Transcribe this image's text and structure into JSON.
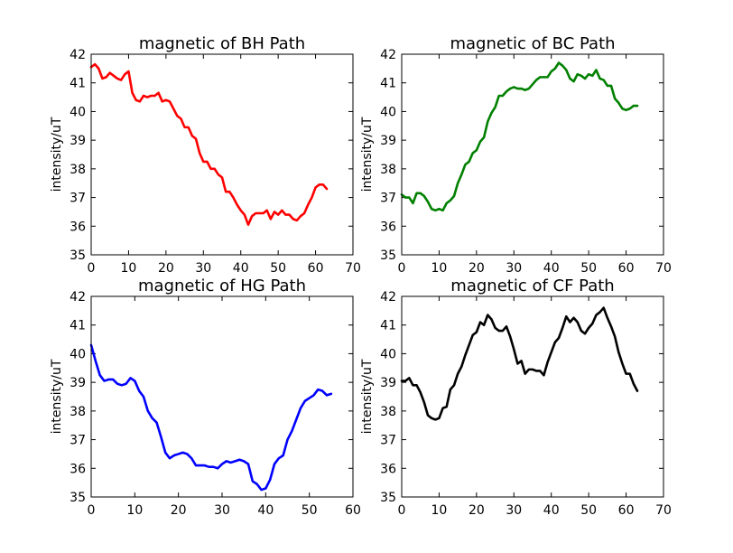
{
  "chart_data": [
    {
      "type": "line",
      "title": "magnetic of BH Path",
      "xlabel": "",
      "ylabel": "intensity/uT",
      "xlim": [
        0,
        70
      ],
      "ylim": [
        35,
        42
      ],
      "xticks": [
        "0",
        "10",
        "20",
        "30",
        "40",
        "50",
        "60",
        "70"
      ],
      "yticks": [
        "35",
        "36",
        "37",
        "38",
        "39",
        "40",
        "41",
        "42"
      ],
      "color": "#ff0000",
      "x": [
        0,
        1,
        2,
        3,
        4,
        5,
        6,
        7,
        8,
        9,
        10,
        11,
        12,
        13,
        14,
        15,
        16,
        17,
        18,
        19,
        20,
        21,
        22,
        23,
        24,
        25,
        26,
        27,
        28,
        29,
        30,
        31,
        32,
        33,
        34,
        35,
        36,
        37,
        38,
        39,
        40,
        41,
        42,
        43,
        44,
        45,
        46,
        47,
        48,
        49,
        50,
        51,
        52,
        53,
        54,
        55,
        56,
        57,
        58,
        59,
        60,
        61,
        62,
        63
      ],
      "y": [
        41.55,
        41.65,
        41.5,
        41.15,
        41.2,
        41.35,
        41.25,
        41.15,
        41.1,
        41.3,
        41.4,
        40.65,
        40.4,
        40.35,
        40.55,
        40.5,
        40.55,
        40.55,
        40.65,
        40.35,
        40.4,
        40.35,
        40.1,
        39.85,
        39.75,
        39.45,
        39.45,
        39.15,
        39.05,
        38.55,
        38.25,
        38.25,
        38.0,
        38.0,
        37.8,
        37.7,
        37.2,
        37.2,
        37.0,
        36.75,
        36.55,
        36.4,
        36.05,
        36.35,
        36.45,
        36.45,
        36.45,
        36.55,
        36.25,
        36.5,
        36.4,
        36.55,
        36.4,
        36.4,
        36.25,
        36.2,
        36.35,
        36.45,
        36.75,
        37.0,
        37.35,
        37.45,
        37.45,
        37.3
      ]
    },
    {
      "type": "line",
      "title": "magnetic of BC Path",
      "xlabel": "",
      "ylabel": "intensity/uT",
      "xlim": [
        0,
        70
      ],
      "ylim": [
        35,
        42
      ],
      "xticks": [
        "0",
        "10",
        "20",
        "30",
        "40",
        "50",
        "60",
        "70"
      ],
      "yticks": [
        "35",
        "36",
        "37",
        "38",
        "39",
        "40",
        "41",
        "42"
      ],
      "color": "#008000",
      "x": [
        0,
        1,
        2,
        3,
        4,
        5,
        6,
        7,
        8,
        9,
        10,
        11,
        12,
        13,
        14,
        15,
        16,
        17,
        18,
        19,
        20,
        21,
        22,
        23,
        24,
        25,
        26,
        27,
        28,
        29,
        30,
        31,
        32,
        33,
        34,
        35,
        36,
        37,
        38,
        39,
        40,
        41,
        42,
        43,
        44,
        45,
        46,
        47,
        48,
        49,
        50,
        51,
        52,
        53,
        54,
        55,
        56,
        57,
        58,
        59,
        60,
        61,
        62,
        63
      ],
      "y": [
        37.1,
        37.0,
        37.0,
        36.8,
        37.15,
        37.15,
        37.05,
        36.85,
        36.6,
        36.55,
        36.6,
        36.55,
        36.8,
        36.9,
        37.05,
        37.5,
        37.8,
        38.15,
        38.25,
        38.55,
        38.65,
        38.95,
        39.1,
        39.65,
        39.95,
        40.15,
        40.55,
        40.55,
        40.7,
        40.8,
        40.85,
        40.8,
        40.8,
        40.75,
        40.8,
        40.95,
        41.1,
        41.2,
        41.2,
        41.2,
        41.4,
        41.5,
        41.7,
        41.6,
        41.45,
        41.15,
        41.05,
        41.3,
        41.25,
        41.15,
        41.3,
        41.25,
        41.45,
        41.15,
        41.1,
        40.9,
        40.9,
        40.45,
        40.3,
        40.1,
        40.05,
        40.1,
        40.2,
        40.2
      ]
    },
    {
      "type": "line",
      "title": "magnetic of HG Path",
      "xlabel": "",
      "ylabel": "intensity/uT",
      "xlim": [
        0,
        60
      ],
      "ylim": [
        35,
        42
      ],
      "xticks": [
        "0",
        "10",
        "20",
        "30",
        "40",
        "50",
        "60"
      ],
      "yticks": [
        "35",
        "36",
        "37",
        "38",
        "39",
        "40",
        "41",
        "42"
      ],
      "color": "#0000ff",
      "x": [
        0,
        1,
        2,
        3,
        4,
        5,
        6,
        7,
        8,
        9,
        10,
        11,
        12,
        13,
        14,
        15,
        16,
        17,
        18,
        19,
        20,
        21,
        22,
        23,
        24,
        25,
        26,
        27,
        28,
        29,
        30,
        31,
        32,
        33,
        34,
        35,
        36,
        37,
        38,
        39,
        40,
        41,
        42,
        43,
        44,
        45,
        46,
        47,
        48,
        49,
        50,
        51,
        52,
        53,
        54,
        55
      ],
      "y": [
        40.3,
        39.75,
        39.25,
        39.05,
        39.1,
        39.1,
        38.95,
        38.9,
        38.95,
        39.15,
        39.05,
        38.7,
        38.5,
        38.0,
        37.75,
        37.6,
        37.1,
        36.55,
        36.35,
        36.45,
        36.5,
        36.55,
        36.5,
        36.35,
        36.1,
        36.1,
        36.1,
        36.05,
        36.05,
        36.0,
        36.15,
        36.25,
        36.2,
        36.25,
        36.3,
        36.25,
        36.15,
        35.55,
        35.45,
        35.25,
        35.3,
        35.6,
        36.15,
        36.35,
        36.45,
        37.0,
        37.3,
        37.7,
        38.1,
        38.35,
        38.45,
        38.55,
        38.75,
        38.7,
        38.55,
        38.6
      ]
    },
    {
      "type": "line",
      "title": "magnetic of CF Path",
      "xlabel": "",
      "ylabel": "intensity/uT",
      "xlim": [
        0,
        70
      ],
      "ylim": [
        35,
        42
      ],
      "xticks": [
        "0",
        "10",
        "20",
        "30",
        "40",
        "50",
        "60",
        "70"
      ],
      "yticks": [
        "35",
        "36",
        "37",
        "38",
        "39",
        "40",
        "41",
        "42"
      ],
      "color": "#000000",
      "x": [
        0,
        1,
        2,
        3,
        4,
        5,
        6,
        7,
        8,
        9,
        10,
        11,
        12,
        13,
        14,
        15,
        16,
        17,
        18,
        19,
        20,
        21,
        22,
        23,
        24,
        25,
        26,
        27,
        28,
        29,
        30,
        31,
        32,
        33,
        34,
        35,
        36,
        37,
        38,
        39,
        40,
        41,
        42,
        43,
        44,
        45,
        46,
        47,
        48,
        49,
        50,
        51,
        52,
        53,
        54,
        55,
        56,
        57,
        58,
        59,
        60,
        61,
        62,
        63
      ],
      "y": [
        39.05,
        39.05,
        39.15,
        38.9,
        38.9,
        38.65,
        38.3,
        37.85,
        37.75,
        37.7,
        37.75,
        38.1,
        38.15,
        38.75,
        38.9,
        39.3,
        39.55,
        39.95,
        40.3,
        40.65,
        40.75,
        41.1,
        41.0,
        41.35,
        41.2,
        40.9,
        40.8,
        40.8,
        40.95,
        40.6,
        40.15,
        39.65,
        39.75,
        39.3,
        39.45,
        39.45,
        39.4,
        39.4,
        39.25,
        39.7,
        40.05,
        40.4,
        40.55,
        40.9,
        41.3,
        41.1,
        41.25,
        41.1,
        40.8,
        40.7,
        40.9,
        41.05,
        41.35,
        41.45,
        41.6,
        41.25,
        40.95,
        40.6,
        40.05,
        39.65,
        39.3,
        39.3,
        38.95,
        38.7
      ]
    }
  ]
}
